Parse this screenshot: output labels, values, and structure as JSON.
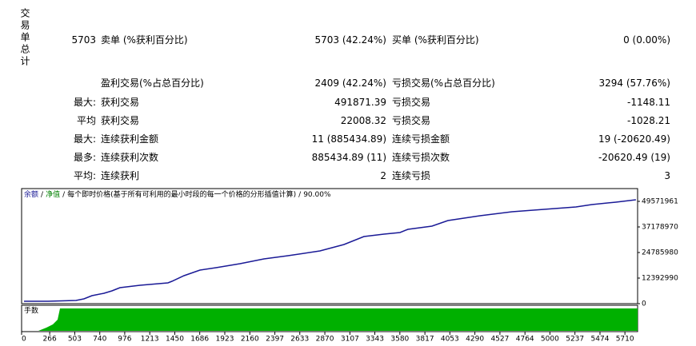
{
  "sidebar_label": "交易单总计",
  "stats": [
    {
      "prefix": "5703",
      "label_1": "卖单 (%获利百分比)",
      "value_1": "5703 (42.24%)",
      "label_2": "买单 (%获利百分比)",
      "value_2": "0 (0.00%)"
    },
    {
      "label_1": "盈利交易(%占总百分比)",
      "value_1": "2409 (42.24%)",
      "label_2": "亏损交易(%占总百分比)",
      "value_2": "3294 (57.76%)"
    },
    {
      "prefix": "最大:",
      "label_1": "获利交易",
      "value_1": "491871.39",
      "label_2": "亏损交易",
      "value_2": "-1148.11"
    },
    {
      "prefix": "平均",
      "label_1": "获利交易",
      "value_1": "22008.32",
      "label_2": "亏损交易",
      "value_2": "-1028.21"
    },
    {
      "prefix": "最大:",
      "label_1": "连续获利金额",
      "value_1": "11 (885434.89)",
      "label_2": "连续亏损金额",
      "value_2": "19 (-20620.49)"
    },
    {
      "prefix": "最多:",
      "label_1": "连续获利次数",
      "value_1": "885434.89 (11)",
      "label_2": "连续亏损次数",
      "value_2": "-20620.49 (19)"
    },
    {
      "prefix": "平均:",
      "label_1": "连续获利",
      "value_1": "2",
      "label_2": "连续亏损",
      "value_2": "3"
    }
  ],
  "chart_data": {
    "type": "line",
    "legend": [
      "净值",
      "每个即时价格(基于所有可利用的最小时段的每一个价格的分形插值计算)",
      "90.00%"
    ],
    "legend_colors": [
      "#008000",
      "#000000",
      "#000000"
    ],
    "legend_separator": "/",
    "lots_label": "手数",
    "x": [
      23,
      250,
      515,
      590,
      666,
      780,
      855,
      893,
      931,
      1120,
      1385,
      1423,
      1537,
      1688,
      1840,
      2067,
      2294,
      2521,
      2824,
      3051,
      3240,
      3429,
      3581,
      3656,
      3883,
      4035,
      4338,
      4641,
      4943,
      5246,
      5397,
      5624,
      5814
    ],
    "series": [
      {
        "name": "余额",
        "color": "#1a1a96",
        "values": [
          1161843,
          1161843,
          1549124,
          2323686,
          3872810,
          5034653,
          6196496,
          6971058,
          7745620,
          8907463,
          10069306,
          10843868,
          13554835,
          16265802,
          17427645,
          19364050,
          21687736,
          23236860,
          25560546,
          28658794,
          32531604,
          33693447,
          34468009,
          36017133,
          37566257,
          40277224,
          42600910,
          44537315,
          45699158,
          46861001,
          48022844,
          49184687,
          50346249
        ]
      }
    ],
    "xlim": [
      0,
      5830
    ],
    "xticks": [
      0,
      266,
      503,
      740,
      976,
      1213,
      1450,
      1686,
      1923,
      2160,
      2397,
      2633,
      2870,
      3107,
      3343,
      3580,
      3817,
      4053,
      4290,
      4527,
      4764,
      5000,
      5237,
      5474,
      5710
    ],
    "ylim": [
      0,
      55768456
    ],
    "yticks": [
      0,
      12392990,
      24785980,
      37178970,
      49571961
    ]
  }
}
